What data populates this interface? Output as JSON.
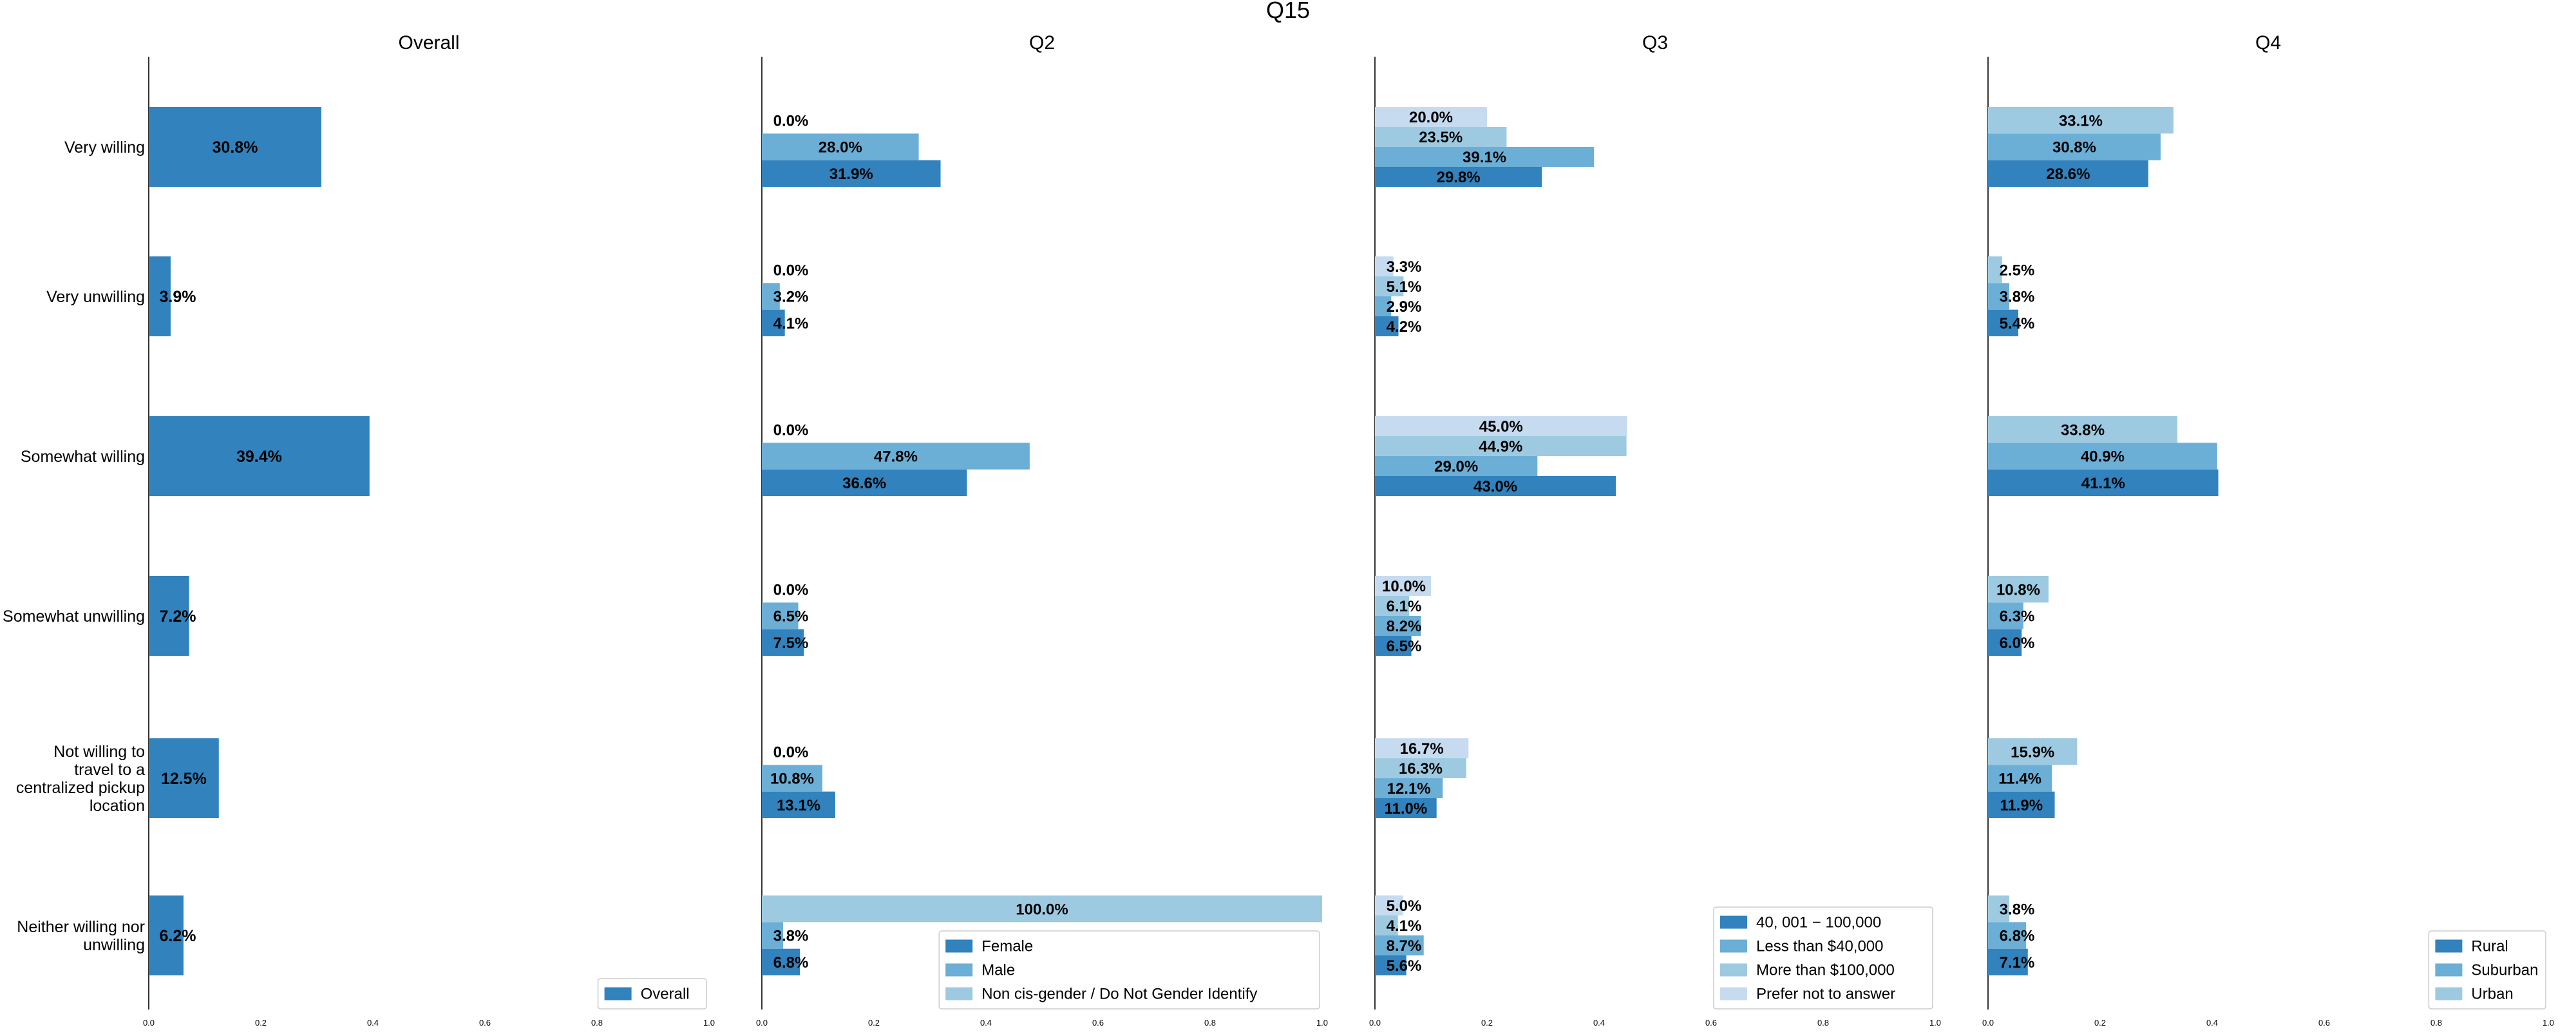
{
  "chart_data": {
    "type": "bar",
    "orientation": "horizontal",
    "title": "Q15",
    "categories": [
      "Very willing",
      "Very unwilling",
      "Somewhat willing",
      "Somewhat unwilling",
      "Not willing to travel to a centralized pickup location",
      "Neither willing nor unwilling"
    ],
    "category_label_lines": [
      [
        "Very willing"
      ],
      [
        "Very unwilling"
      ],
      [
        "Somewhat willing"
      ],
      [
        "Somewhat unwilling"
      ],
      [
        "Not willing to",
        "travel to a",
        "centralized pickup",
        "location"
      ],
      [
        "Neither willing nor",
        "unwilling"
      ]
    ],
    "xlim": [
      0,
      1.0
    ],
    "xticks": [
      "0.0",
      "0.2",
      "0.4",
      "0.6",
      "0.8",
      "1.0"
    ],
    "grid": false,
    "panels": [
      {
        "title": "Overall",
        "legend_position": "lower-right",
        "series": [
          {
            "name": "Overall",
            "color": "#3182bd",
            "values": [
              0.308,
              0.039,
              0.394,
              0.072,
              0.125,
              0.062
            ],
            "labels": [
              "30.8%",
              "3.9%",
              "39.4%",
              "7.2%",
              "12.5%",
              "6.2%"
            ]
          }
        ]
      },
      {
        "title": "Q2",
        "legend_position": "lower-right",
        "series": [
          {
            "name": "Female",
            "color": "#3182bd",
            "values": [
              0.319,
              0.041,
              0.366,
              0.075,
              0.131,
              0.068
            ],
            "labels": [
              "31.9%",
              "4.1%",
              "36.6%",
              "7.5%",
              "13.1%",
              "6.8%"
            ]
          },
          {
            "name": "Male",
            "color": "#6baed6",
            "values": [
              0.28,
              0.032,
              0.478,
              0.065,
              0.108,
              0.038
            ],
            "labels": [
              "28.0%",
              "3.2%",
              "47.8%",
              "6.5%",
              "10.8%",
              "3.8%"
            ]
          },
          {
            "name": "Non cis-gender / Do Not Gender Identify",
            "color": "#9ecae1",
            "values": [
              0.0,
              0.0,
              0.0,
              0.0,
              0.0,
              1.0
            ],
            "labels": [
              "0.0%",
              "0.0%",
              "0.0%",
              "0.0%",
              "0.0%",
              "100.0%"
            ]
          }
        ]
      },
      {
        "title": "Q3",
        "legend_position": "lower-right",
        "series": [
          {
            "name": "40, 001 − 100,000",
            "color": "#3182bd",
            "values": [
              0.298,
              0.042,
              0.43,
              0.065,
              0.11,
              0.056
            ],
            "labels": [
              "29.8%",
              "4.2%",
              "43.0%",
              "6.5%",
              "11.0%",
              "5.6%"
            ]
          },
          {
            "name": "Less than $40,000",
            "color": "#6baed6",
            "values": [
              0.391,
              0.029,
              0.29,
              0.082,
              0.121,
              0.087
            ],
            "labels": [
              "39.1%",
              "2.9%",
              "29.0%",
              "8.2%",
              "12.1%",
              "8.7%"
            ]
          },
          {
            "name": "More than $100,000",
            "color": "#9ecae1",
            "values": [
              0.235,
              0.051,
              0.449,
              0.061,
              0.163,
              0.041
            ],
            "labels": [
              "23.5%",
              "5.1%",
              "44.9%",
              "6.1%",
              "16.3%",
              "4.1%"
            ]
          },
          {
            "name": "Prefer not to answer",
            "color": "#c6dbef",
            "values": [
              0.2,
              0.033,
              0.45,
              0.1,
              0.167,
              0.05
            ],
            "labels": [
              "20.0%",
              "3.3%",
              "45.0%",
              "10.0%",
              "16.7%",
              "5.0%"
            ]
          }
        ]
      },
      {
        "title": "Q4",
        "legend_position": "lower-right",
        "series": [
          {
            "name": "Rural",
            "color": "#3182bd",
            "values": [
              0.286,
              0.054,
              0.411,
              0.06,
              0.119,
              0.071
            ],
            "labels": [
              "28.6%",
              "5.4%",
              "41.1%",
              "6.0%",
              "11.9%",
              "7.1%"
            ]
          },
          {
            "name": "Suburban",
            "color": "#6baed6",
            "values": [
              0.308,
              0.038,
              0.409,
              0.063,
              0.114,
              0.068
            ],
            "labels": [
              "30.8%",
              "3.8%",
              "40.9%",
              "6.3%",
              "11.4%",
              "6.8%"
            ]
          },
          {
            "name": "Urban",
            "color": "#9ecae1",
            "values": [
              0.331,
              0.025,
              0.338,
              0.108,
              0.159,
              0.038
            ],
            "labels": [
              "33.1%",
              "2.5%",
              "33.8%",
              "10.8%",
              "15.9%",
              "3.8%"
            ]
          }
        ]
      }
    ]
  }
}
